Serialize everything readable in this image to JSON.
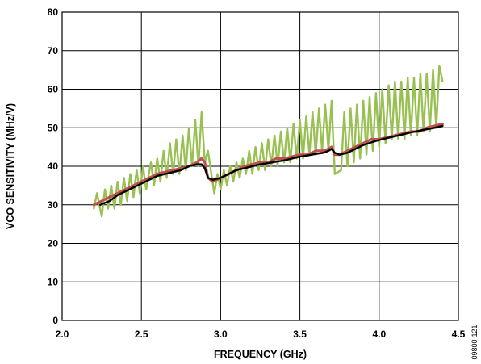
{
  "chart_data": {
    "type": "line",
    "xlabel": "FREQUENCY (GHz)",
    "ylabel": "VCO SENSITIVITY (MHz/V)",
    "xlim": [
      2.0,
      4.5
    ],
    "ylim": [
      0,
      80
    ],
    "x_ticks": [
      "2.0",
      "2.5",
      "3.0",
      "3.5",
      "4.0",
      "4.5"
    ],
    "y_ticks": [
      "0",
      "10",
      "20",
      "30",
      "40",
      "50",
      "60",
      "70",
      "80"
    ],
    "grid": true,
    "series_colors": [
      "#98c152",
      "#c0504d",
      "#000000"
    ],
    "series": [
      {
        "values": [
          [
            2.2,
            29
          ],
          [
            2.22,
            33
          ],
          [
            2.25,
            27
          ],
          [
            2.27,
            34
          ],
          [
            2.29,
            29
          ],
          [
            2.31,
            35
          ],
          [
            2.33,
            29
          ],
          [
            2.35,
            36
          ],
          [
            2.37,
            30
          ],
          [
            2.39,
            37
          ],
          [
            2.41,
            31
          ],
          [
            2.43,
            38
          ],
          [
            2.45,
            32
          ],
          [
            2.47,
            39
          ],
          [
            2.49,
            33
          ],
          [
            2.51,
            40
          ],
          [
            2.53,
            34
          ],
          [
            2.56,
            41
          ],
          [
            2.58,
            35
          ],
          [
            2.6,
            42
          ],
          [
            2.62,
            36
          ],
          [
            2.64,
            44
          ],
          [
            2.66,
            37
          ],
          [
            2.68,
            46
          ],
          [
            2.7,
            38
          ],
          [
            2.72,
            47
          ],
          [
            2.74,
            38
          ],
          [
            2.76,
            48
          ],
          [
            2.78,
            39
          ],
          [
            2.8,
            50
          ],
          [
            2.82,
            40
          ],
          [
            2.84,
            52
          ],
          [
            2.86,
            40
          ],
          [
            2.88,
            54
          ],
          [
            2.9,
            41
          ],
          [
            2.92,
            44
          ],
          [
            2.96,
            33
          ],
          [
            2.98,
            38
          ],
          [
            3.0,
            34
          ],
          [
            3.02,
            39
          ],
          [
            3.04,
            35
          ],
          [
            3.06,
            40
          ],
          [
            3.08,
            36
          ],
          [
            3.1,
            41
          ],
          [
            3.12,
            37
          ],
          [
            3.14,
            42
          ],
          [
            3.16,
            38
          ],
          [
            3.18,
            44
          ],
          [
            3.2,
            38
          ],
          [
            3.22,
            45
          ],
          [
            3.24,
            39
          ],
          [
            3.26,
            46
          ],
          [
            3.28,
            39
          ],
          [
            3.3,
            47
          ],
          [
            3.32,
            40
          ],
          [
            3.34,
            48
          ],
          [
            3.36,
            40
          ],
          [
            3.38,
            49
          ],
          [
            3.4,
            41
          ],
          [
            3.42,
            50
          ],
          [
            3.44,
            41
          ],
          [
            3.46,
            51
          ],
          [
            3.48,
            42
          ],
          [
            3.5,
            52
          ],
          [
            3.52,
            42
          ],
          [
            3.54,
            53
          ],
          [
            3.56,
            43
          ],
          [
            3.58,
            54
          ],
          [
            3.6,
            43
          ],
          [
            3.62,
            55
          ],
          [
            3.64,
            44
          ],
          [
            3.66,
            56
          ],
          [
            3.68,
            44
          ],
          [
            3.7,
            57
          ],
          [
            3.72,
            38
          ],
          [
            3.76,
            39
          ],
          [
            3.78,
            54
          ],
          [
            3.8,
            40
          ],
          [
            3.82,
            55
          ],
          [
            3.84,
            41
          ],
          [
            3.86,
            56
          ],
          [
            3.88,
            42
          ],
          [
            3.9,
            57
          ],
          [
            3.92,
            43
          ],
          [
            3.94,
            58
          ],
          [
            3.96,
            44
          ],
          [
            3.98,
            59
          ],
          [
            4.0,
            45
          ],
          [
            4.02,
            60
          ],
          [
            4.04,
            46
          ],
          [
            4.06,
            61
          ],
          [
            4.08,
            47
          ],
          [
            4.1,
            62
          ],
          [
            4.12,
            47
          ],
          [
            4.14,
            62
          ],
          [
            4.16,
            47
          ],
          [
            4.18,
            63
          ],
          [
            4.2,
            48
          ],
          [
            4.22,
            63
          ],
          [
            4.24,
            48
          ],
          [
            4.26,
            64
          ],
          [
            4.28,
            49
          ],
          [
            4.3,
            64
          ],
          [
            4.32,
            49
          ],
          [
            4.34,
            65
          ],
          [
            4.36,
            50
          ],
          [
            4.38,
            66
          ],
          [
            4.4,
            62
          ]
        ]
      },
      {
        "values": [
          [
            2.2,
            30
          ],
          [
            2.25,
            31
          ],
          [
            2.3,
            32
          ],
          [
            2.35,
            33
          ],
          [
            2.4,
            34
          ],
          [
            2.45,
            35
          ],
          [
            2.5,
            36
          ],
          [
            2.55,
            37
          ],
          [
            2.6,
            38
          ],
          [
            2.65,
            38.5
          ],
          [
            2.7,
            39
          ],
          [
            2.75,
            39.5
          ],
          [
            2.8,
            40
          ],
          [
            2.85,
            41
          ],
          [
            2.88,
            42
          ],
          [
            2.9,
            41
          ],
          [
            2.92,
            37
          ],
          [
            2.95,
            36
          ],
          [
            3.0,
            37
          ],
          [
            3.05,
            38
          ],
          [
            3.1,
            39
          ],
          [
            3.15,
            40
          ],
          [
            3.2,
            40.5
          ],
          [
            3.25,
            41
          ],
          [
            3.3,
            41
          ],
          [
            3.35,
            42
          ],
          [
            3.4,
            42
          ],
          [
            3.45,
            42.5
          ],
          [
            3.5,
            43
          ],
          [
            3.55,
            43
          ],
          [
            3.6,
            44
          ],
          [
            3.65,
            44
          ],
          [
            3.68,
            44.5
          ],
          [
            3.7,
            45
          ],
          [
            3.72,
            43
          ],
          [
            3.75,
            43
          ],
          [
            3.8,
            44
          ],
          [
            3.85,
            45
          ],
          [
            3.9,
            46
          ],
          [
            3.95,
            47
          ],
          [
            4.0,
            47
          ],
          [
            4.05,
            47.5
          ],
          [
            4.1,
            48
          ],
          [
            4.15,
            48.5
          ],
          [
            4.2,
            49
          ],
          [
            4.25,
            49
          ],
          [
            4.3,
            50
          ],
          [
            4.35,
            50.5
          ],
          [
            4.4,
            51
          ]
        ]
      },
      {
        "values": [
          [
            2.24,
            30
          ],
          [
            2.27,
            30.5
          ],
          [
            2.3,
            31
          ],
          [
            2.35,
            32.5
          ],
          [
            2.4,
            33.5
          ],
          [
            2.45,
            34.5
          ],
          [
            2.5,
            35.5
          ],
          [
            2.55,
            36.5
          ],
          [
            2.6,
            37.5
          ],
          [
            2.65,
            38
          ],
          [
            2.7,
            38.5
          ],
          [
            2.75,
            39
          ],
          [
            2.8,
            40
          ],
          [
            2.85,
            40.5
          ],
          [
            2.88,
            40.5
          ],
          [
            2.9,
            39.5
          ],
          [
            2.92,
            37
          ],
          [
            2.95,
            36.5
          ],
          [
            3.0,
            37
          ],
          [
            3.05,
            38
          ],
          [
            3.1,
            39
          ],
          [
            3.15,
            39.5
          ],
          [
            3.2,
            40
          ],
          [
            3.25,
            40.5
          ],
          [
            3.3,
            40.8
          ],
          [
            3.35,
            41.2
          ],
          [
            3.4,
            41.5
          ],
          [
            3.45,
            42
          ],
          [
            3.5,
            42.5
          ],
          [
            3.55,
            42.8
          ],
          [
            3.6,
            43.2
          ],
          [
            3.65,
            43.5
          ],
          [
            3.68,
            44
          ],
          [
            3.7,
            44.5
          ],
          [
            3.72,
            43.5
          ],
          [
            3.75,
            43
          ],
          [
            3.8,
            43.5
          ],
          [
            3.85,
            44.5
          ],
          [
            3.9,
            45.5
          ],
          [
            3.95,
            46.2
          ],
          [
            4.0,
            46.8
          ],
          [
            4.05,
            47.3
          ],
          [
            4.1,
            47.8
          ],
          [
            4.15,
            48.3
          ],
          [
            4.2,
            48.8
          ],
          [
            4.25,
            49.2
          ],
          [
            4.3,
            49.6
          ],
          [
            4.35,
            50
          ],
          [
            4.4,
            50.5
          ]
        ]
      }
    ]
  },
  "figure_id": "09800-121"
}
